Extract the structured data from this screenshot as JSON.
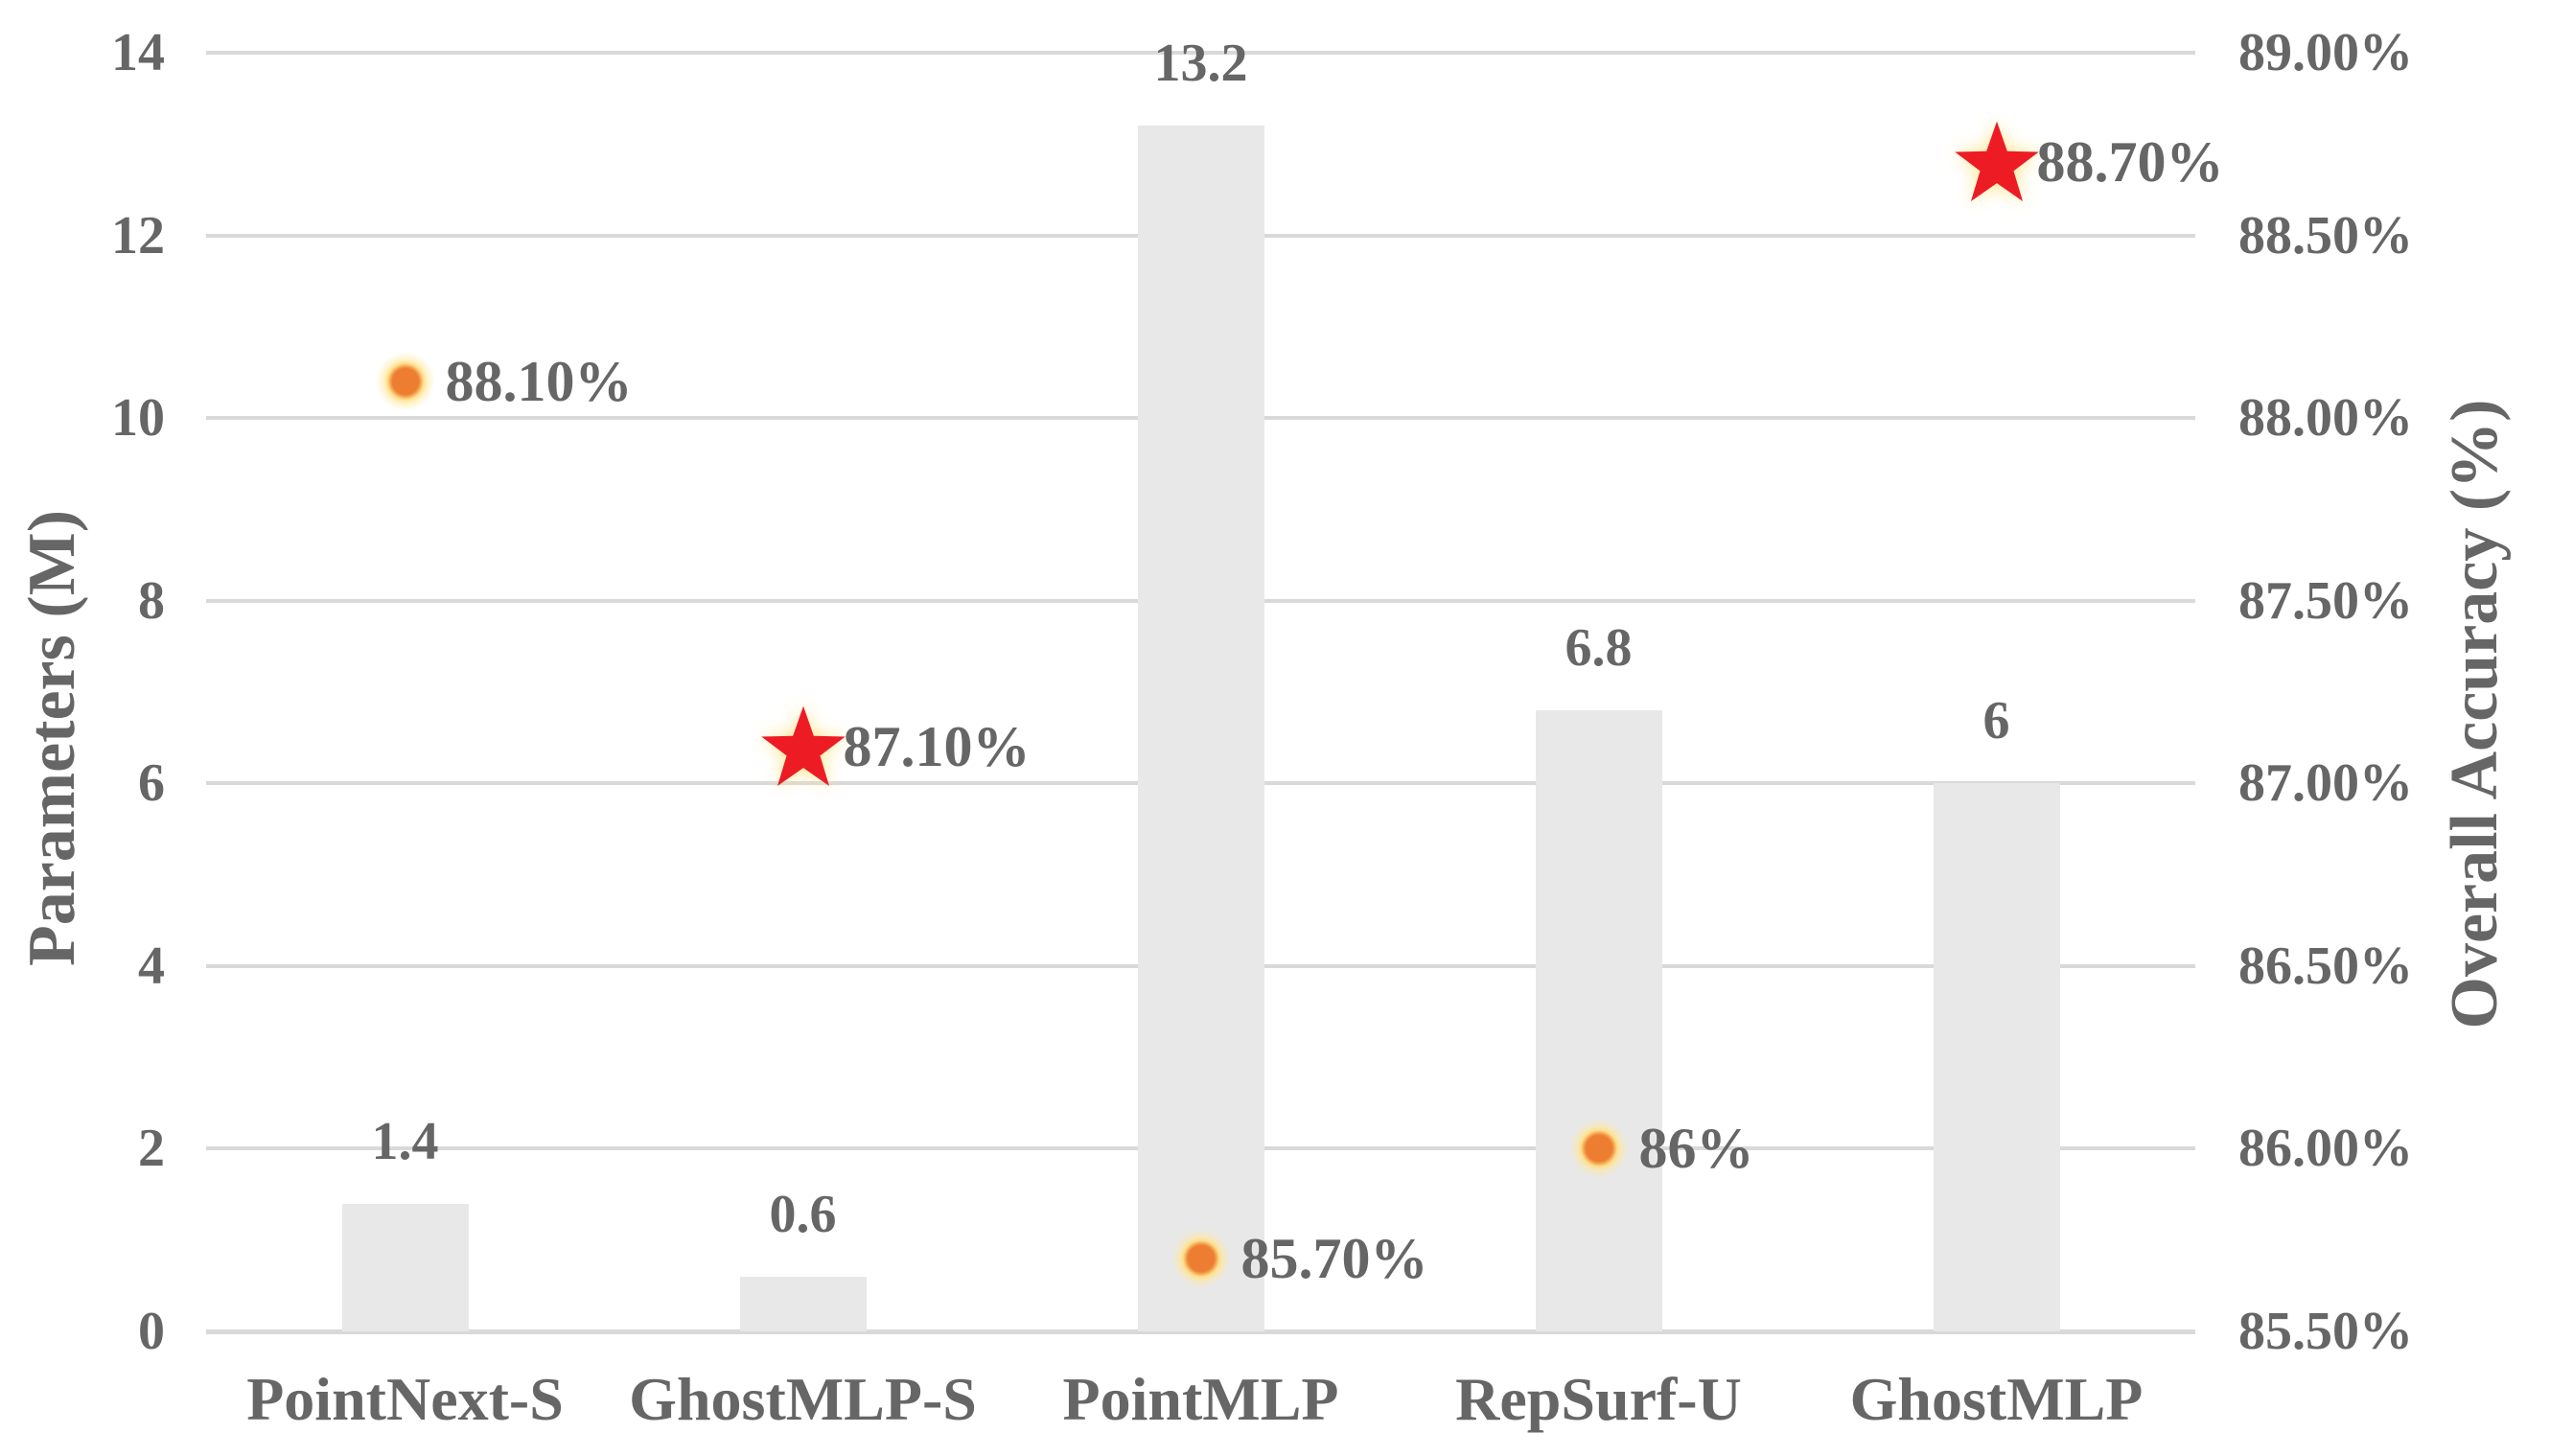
{
  "chart_data": {
    "type": "bar",
    "subtype": "combo-bar-scatter",
    "title": "",
    "categories": [
      "PointNext-S",
      "GhostMLP-S",
      "PointMLP",
      "RepSurf-U",
      "GhostMLP"
    ],
    "series": [
      {
        "name": "Parameters (M)",
        "type": "bar",
        "axis": "left",
        "values": [
          1.4,
          0.6,
          13.2,
          6.8,
          6
        ],
        "labels": [
          "1.4",
          "0.6",
          "13.2",
          "6.8",
          "6"
        ]
      },
      {
        "name": "Overall Accuracy (%)",
        "type": "scatter",
        "axis": "right",
        "values": [
          88.1,
          87.1,
          85.7,
          86.0,
          88.7
        ],
        "labels": [
          "88.10%",
          "87.10%",
          "85.70%",
          "86%",
          "88.70%"
        ],
        "markers": [
          "dot",
          "star",
          "dot",
          "dot",
          "star"
        ]
      }
    ],
    "left_axis": {
      "title": "Parameters (M)",
      "min": 0,
      "max": 14,
      "step": 2,
      "ticks": [
        "0",
        "2",
        "4",
        "6",
        "8",
        "10",
        "12",
        "14"
      ]
    },
    "right_axis": {
      "title": "Overall Accuracy (%)",
      "min": 85.5,
      "max": 89.0,
      "step": 0.5,
      "ticks": [
        "85.50%",
        "86.00%",
        "86.50%",
        "87.00%",
        "87.50%",
        "88.00%",
        "88.50%",
        "89.00%"
      ]
    },
    "grid": true,
    "legend": "none",
    "colors": {
      "bar": "#e8e8e8",
      "gridline": "#d9d9d9",
      "axis_line": "#d9d9d9",
      "text": "#666666",
      "dot": "#ed7d31",
      "dot_glow": "#ffe9a0",
      "star": "#ed1c24"
    }
  }
}
